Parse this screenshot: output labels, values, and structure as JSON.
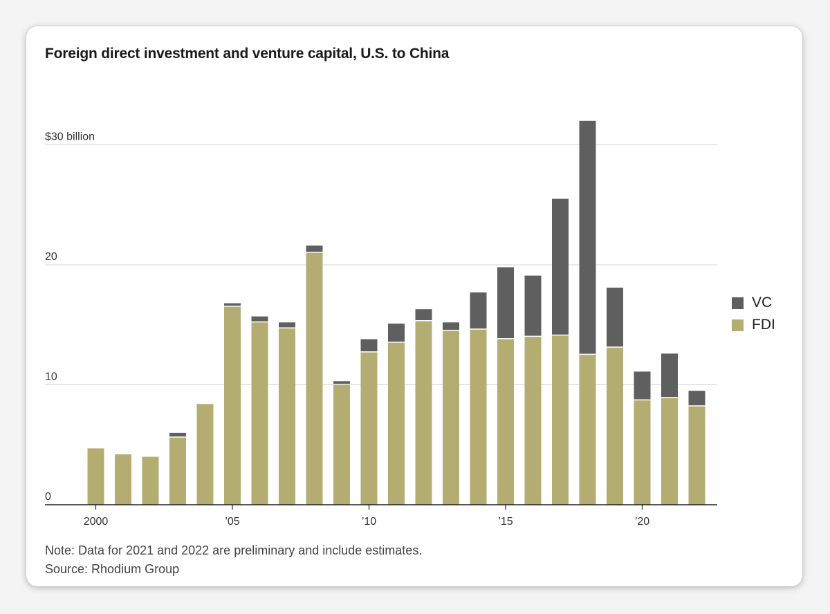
{
  "title": "Foreign direct investment and venture capital, U.S. to China",
  "legend": [
    {
      "name": "VC",
      "color": "#5f5f5f"
    },
    {
      "name": "FDI",
      "color": "#b3ad71"
    }
  ],
  "note": "Note: Data for 2021 and 2022 are preliminary and include estimates.",
  "source": "Source: Rhodium Group",
  "colors": {
    "vc": "#5f5f5f",
    "fdi": "#b3ad71",
    "grid": "#d4d4d4",
    "axis": "#222222"
  },
  "chart_data": {
    "type": "bar",
    "stacked": true,
    "title": "Foreign direct investment and venture capital, U.S. to China",
    "xlabel": "",
    "ylabel": "",
    "unit": "$ billion",
    "ylim": [
      0,
      32
    ],
    "y_ticks": [
      {
        "value": 0,
        "label": "0"
      },
      {
        "value": 10,
        "label": "10"
      },
      {
        "value": 20,
        "label": "20"
      },
      {
        "value": 30,
        "label": "$30 billion"
      }
    ],
    "x_ticks": [
      {
        "year": 2000,
        "label": "2000"
      },
      {
        "year": 2005,
        "label": "’05"
      },
      {
        "year": 2010,
        "label": "’10"
      },
      {
        "year": 2015,
        "label": "’15"
      },
      {
        "year": 2020,
        "label": "’20"
      }
    ],
    "categories": [
      2000,
      2001,
      2002,
      2003,
      2004,
      2005,
      2006,
      2007,
      2008,
      2009,
      2010,
      2011,
      2012,
      2013,
      2014,
      2015,
      2016,
      2017,
      2018,
      2019,
      2020,
      2021,
      2022
    ],
    "series": [
      {
        "name": "FDI",
        "values": [
          4.7,
          4.2,
          4.0,
          5.6,
          8.4,
          16.5,
          15.2,
          14.7,
          21.0,
          10.0,
          12.7,
          13.5,
          15.3,
          14.5,
          14.6,
          13.8,
          14.0,
          14.1,
          12.5,
          13.1,
          8.7,
          8.9,
          8.2
        ]
      },
      {
        "name": "VC",
        "values": [
          0,
          0,
          0,
          0.4,
          0,
          0.3,
          0.5,
          0.5,
          0.6,
          0.3,
          1.1,
          1.6,
          1.0,
          0.7,
          3.1,
          6.0,
          5.1,
          11.4,
          19.5,
          5.0,
          2.4,
          3.7,
          1.3
        ]
      }
    ]
  }
}
